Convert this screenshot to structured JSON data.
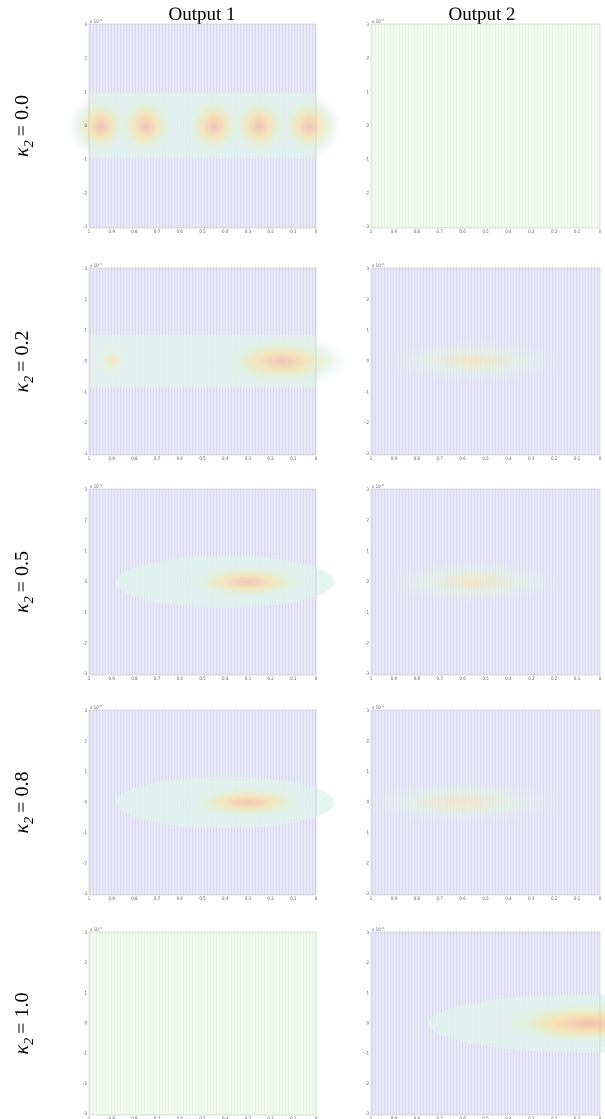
{
  "columns": [
    "Output 1",
    "Output 2"
  ],
  "rows": [
    {
      "symbol": "κ",
      "subscript": "2",
      "value": "= 0.0"
    },
    {
      "symbol": "κ",
      "subscript": "2",
      "value": "= 0.2"
    },
    {
      "symbol": "κ",
      "subscript": "2",
      "value": "= 0.5"
    },
    {
      "symbol": "κ",
      "subscript": "2",
      "value": "= 0.8"
    },
    {
      "symbol": "κ",
      "subscript": "2",
      "value": "= 1.0"
    }
  ],
  "axes": {
    "y_multiplier": "x 10",
    "y_exponent": "-3",
    "yticks": [
      "3",
      "2",
      "1",
      "0",
      "-1",
      "-2",
      "-3"
    ],
    "xticks": [
      "1",
      "0.9",
      "0.8",
      "0.7",
      "0.6",
      "0.5",
      "0.4",
      "0.3",
      "0.2",
      "0.1",
      "0"
    ]
  }
}
